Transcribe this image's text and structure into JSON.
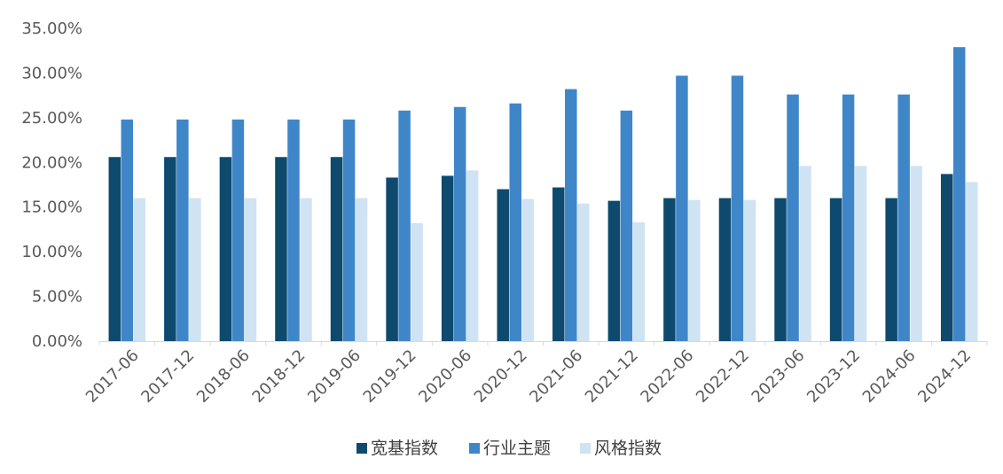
{
  "chart_data": {
    "type": "bar",
    "title": "",
    "xlabel": "",
    "ylabel": "",
    "categories": [
      "2017-06",
      "2017-12",
      "2018-06",
      "2018-12",
      "2019-06",
      "2019-12",
      "2020-06",
      "2020-12",
      "2021-06",
      "2021-12",
      "2022-06",
      "2022-12",
      "2023-06",
      "2023-12",
      "2024-06",
      "2024-12"
    ],
    "series": [
      {
        "name": "宽基指数",
        "color": "#0e4a6e",
        "values": [
          20.6,
          20.6,
          20.6,
          20.6,
          20.6,
          18.3,
          18.5,
          17.0,
          17.2,
          15.7,
          16.0,
          16.0,
          16.0,
          16.0,
          16.0,
          18.7
        ]
      },
      {
        "name": "行业主题",
        "color": "#3f86c9",
        "values": [
          24.8,
          24.8,
          24.8,
          24.8,
          24.8,
          25.8,
          26.2,
          26.6,
          28.2,
          25.8,
          29.7,
          29.7,
          27.6,
          27.6,
          27.6,
          32.9
        ]
      },
      {
        "name": "风格指数",
        "color": "#cfe3f3",
        "values": [
          16.0,
          16.0,
          16.0,
          16.0,
          16.0,
          13.2,
          19.1,
          15.9,
          15.4,
          13.3,
          15.8,
          15.8,
          19.6,
          19.6,
          19.6,
          17.8
        ]
      }
    ],
    "ylim": [
      0,
      35
    ],
    "yticks": [
      "0.00%",
      "5.00%",
      "10.00%",
      "15.00%",
      "20.00%",
      "25.00%",
      "30.00%",
      "35.00%"
    ],
    "ytick_values": [
      0,
      5,
      10,
      15,
      20,
      25,
      30,
      35
    ],
    "grid": false,
    "legend": "bottom-center"
  }
}
